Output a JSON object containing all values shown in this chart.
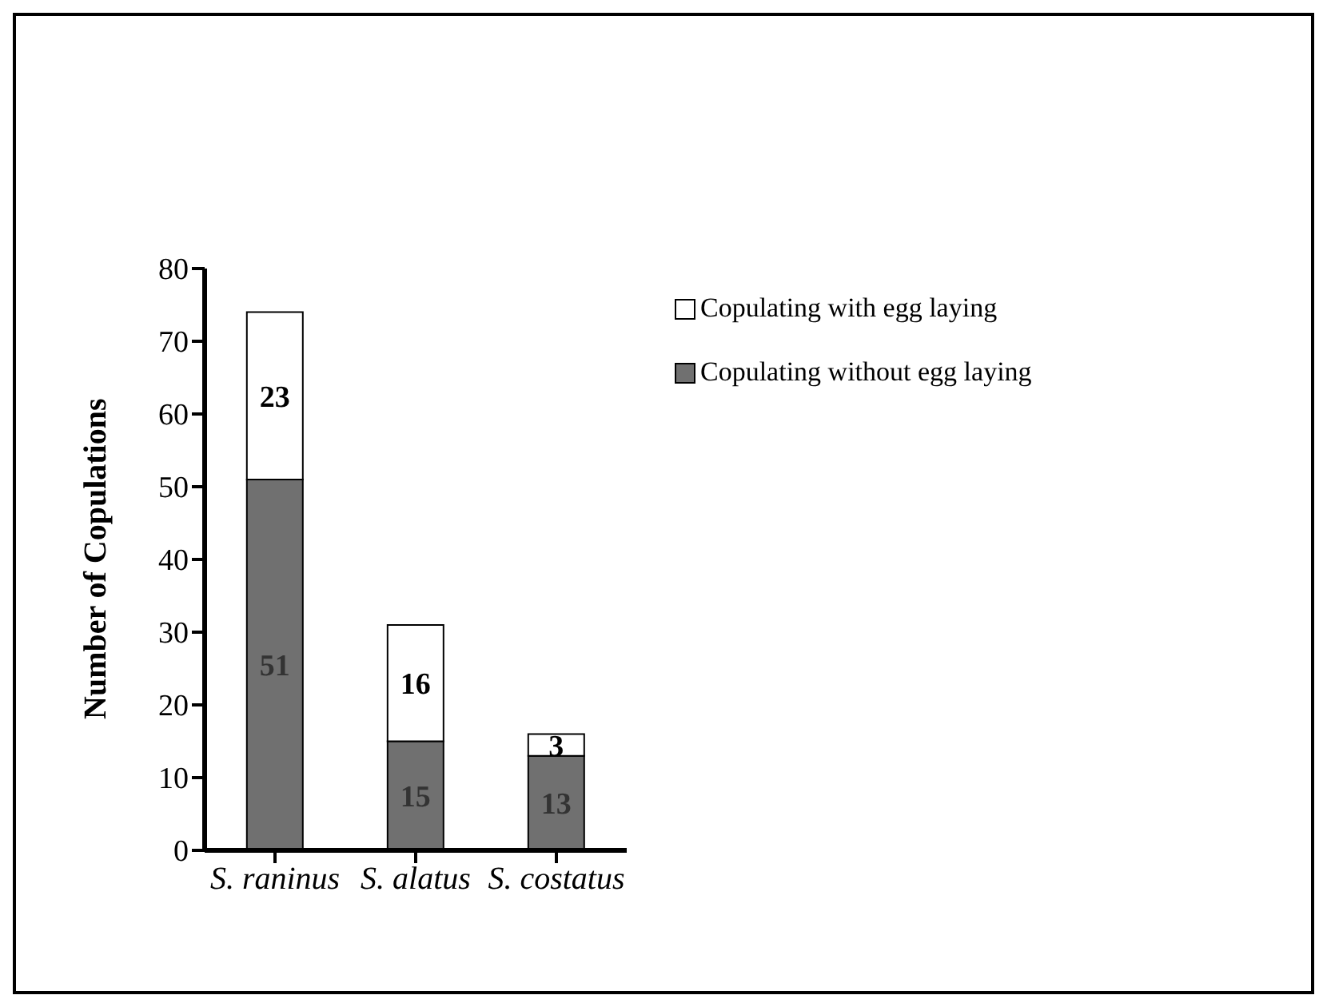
{
  "chart_data": {
    "type": "bar",
    "stacked": true,
    "ylabel": "Number of Copulations",
    "categories": [
      "S. raninus",
      "S. alatus",
      "S. costatus"
    ],
    "series": [
      {
        "name": "Copulating without egg laying",
        "color": "#707070",
        "values": [
          51,
          15,
          13
        ]
      },
      {
        "name": "Copulating with egg laying",
        "color": "#ffffff",
        "values": [
          23,
          16,
          3
        ]
      }
    ],
    "ylim": [
      0,
      80
    ],
    "yticks": [
      0,
      10,
      20,
      30,
      40,
      50,
      60,
      70,
      80
    ],
    "data_labels": true,
    "legend": "top right",
    "grid": false
  }
}
